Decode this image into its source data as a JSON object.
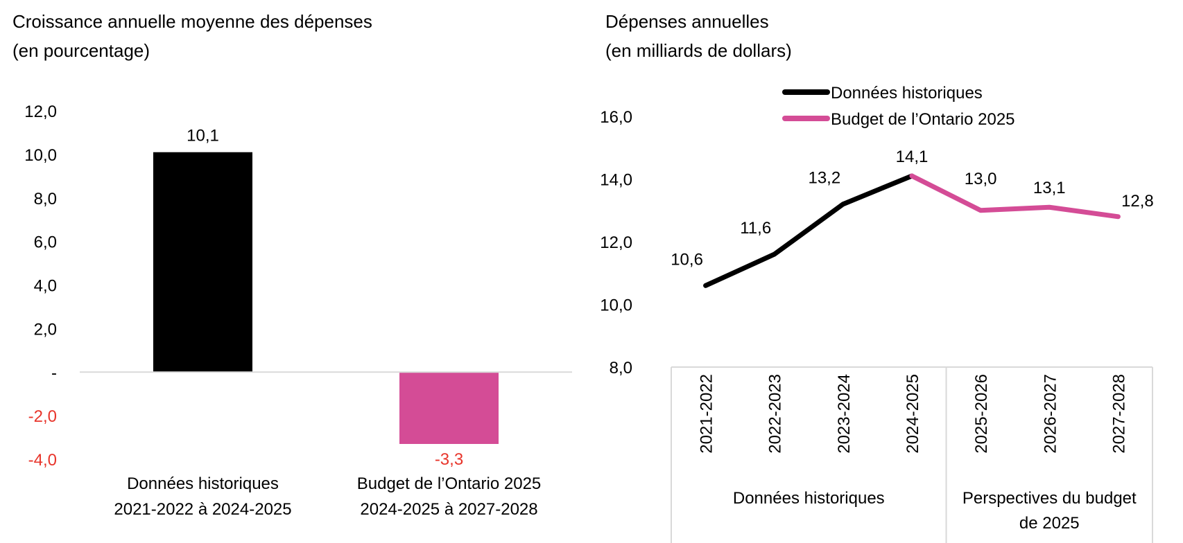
{
  "chart_data": [
    {
      "type": "bar",
      "title": "Croissance annuelle moyenne des dépenses",
      "subtitle": "(en pourcentage)",
      "xlabel": "",
      "ylabel": "",
      "ylim": [
        -4,
        12
      ],
      "yticks": [
        12,
        10,
        8,
        6,
        4,
        2,
        0,
        -2,
        -4
      ],
      "ytick_labels": [
        "12,0",
        "10,0",
        "8,0",
        "6,0",
        "4,0",
        "2,0",
        "-",
        "-2,0",
        "-4,0"
      ],
      "negative_color": "#e8352b",
      "grid": false,
      "categories": [
        [
          "Données historiques",
          "2021-2022 à 2024-2025"
        ],
        [
          "Budget de l’Ontario 2025",
          "2024-2025 à 2027-2028"
        ]
      ],
      "values": [
        10.1,
        -3.3
      ],
      "value_labels": [
        "10,1",
        "-3,3"
      ],
      "colors": [
        "#000000",
        "#d44c96"
      ]
    },
    {
      "type": "line",
      "title": "Dépenses annuelles",
      "subtitle": "(en milliards de dollars)",
      "xlabel": "",
      "ylabel": "",
      "ylim": [
        8,
        16
      ],
      "yticks": [
        16,
        14,
        12,
        10,
        8
      ],
      "ytick_labels": [
        "16,0",
        "14,0",
        "12,0",
        "10,0",
        "8,0"
      ],
      "grid": false,
      "legend": "top-center",
      "x": [
        "2021-2022",
        "2022-2023",
        "2023-2024",
        "2024-2025",
        "2025-2026",
        "2026-2027",
        "2027-2028"
      ],
      "groups": [
        {
          "label": "Données historiques",
          "span": [
            0,
            3
          ]
        },
        {
          "label": "Perspectives du budget de 2025",
          "span": [
            4,
            6
          ]
        }
      ],
      "series": [
        {
          "name": "Données historiques",
          "color": "#000000",
          "x": [
            "2021-2022",
            "2022-2023",
            "2023-2024",
            "2024-2025"
          ],
          "values": [
            10.6,
            11.6,
            13.2,
            14.1
          ]
        },
        {
          "name": "Budget de l’Ontario 2025",
          "color": "#d44c96",
          "x": [
            "2024-2025",
            "2025-2026",
            "2026-2027",
            "2027-2028"
          ],
          "values": [
            14.1,
            13.0,
            13.1,
            12.8
          ]
        }
      ],
      "point_labels": [
        "10,6",
        "11,6",
        "13,2",
        "14,1",
        "13,0",
        "13,1",
        "12,8"
      ]
    }
  ]
}
